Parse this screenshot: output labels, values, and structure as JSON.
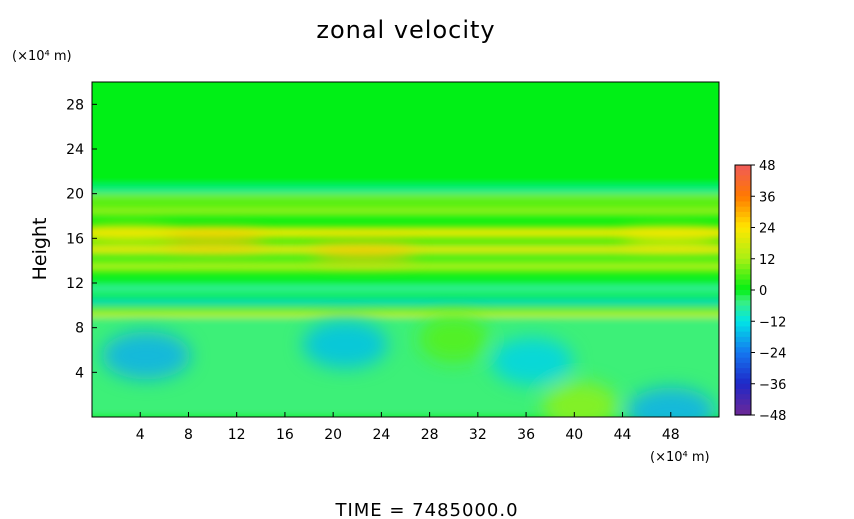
{
  "chart_data": {
    "type": "heatmap",
    "title": "zonal velocity",
    "ylabel": "Height",
    "x_unit": "(×10⁴ m)",
    "y_unit": "(×10⁴ m)",
    "xlim": [
      0,
      52
    ],
    "ylim": [
      0,
      30
    ],
    "xticks": [
      4,
      8,
      12,
      16,
      20,
      24,
      28,
      32,
      36,
      40,
      44,
      48
    ],
    "yticks": [
      4,
      8,
      12,
      16,
      20,
      24,
      28
    ],
    "colorbar": {
      "ticks": [
        48,
        36,
        24,
        12,
        0,
        -12,
        -24,
        -36,
        -48
      ],
      "tick_labels": [
        "48",
        "36",
        "24",
        "12",
        "0",
        "−12",
        "−24",
        "−36",
        "−48"
      ],
      "range": [
        -48,
        48
      ]
    },
    "field_bands": [
      {
        "y_range": [
          21,
          30
        ],
        "value": 0
      },
      {
        "y_range": [
          20.1,
          20.6
        ],
        "value": -10
      },
      {
        "y_range": [
          19.4,
          19.8
        ],
        "value": 16
      },
      {
        "y_range": [
          18,
          19
        ],
        "value": 10
      },
      {
        "y_range": [
          16,
          17
        ],
        "value": 22
      },
      {
        "y_range": [
          14.5,
          15.5
        ],
        "value": 20
      },
      {
        "y_range": [
          13,
          14
        ],
        "value": 12
      },
      {
        "y_range": [
          11,
          12
        ],
        "value": -6
      },
      {
        "y_range": [
          10,
          10.6
        ],
        "value": -14
      },
      {
        "y_range": [
          9,
          9.6
        ],
        "value": 16
      },
      {
        "y_range": [
          0,
          9
        ],
        "value": -4
      }
    ],
    "field_blobs": [
      {
        "x": 10,
        "y": 15.8,
        "value": 28
      },
      {
        "x": 3,
        "y": 16.3,
        "value": 22
      },
      {
        "x": 22.5,
        "y": 14.7,
        "value": 28
      },
      {
        "x": 48,
        "y": 16,
        "value": 24
      },
      {
        "x": 4.5,
        "y": 5.5,
        "value": -18
      },
      {
        "x": 21,
        "y": 6.5,
        "value": -16
      },
      {
        "x": 36.5,
        "y": 5,
        "value": -14
      },
      {
        "x": 48,
        "y": 0.5,
        "value": -18
      },
      {
        "x": 30,
        "y": 7,
        "value": 6
      },
      {
        "x": 40.5,
        "y": 1,
        "value": 10
      }
    ]
  },
  "footer": {
    "label": "TIME  =  7485000.0"
  }
}
